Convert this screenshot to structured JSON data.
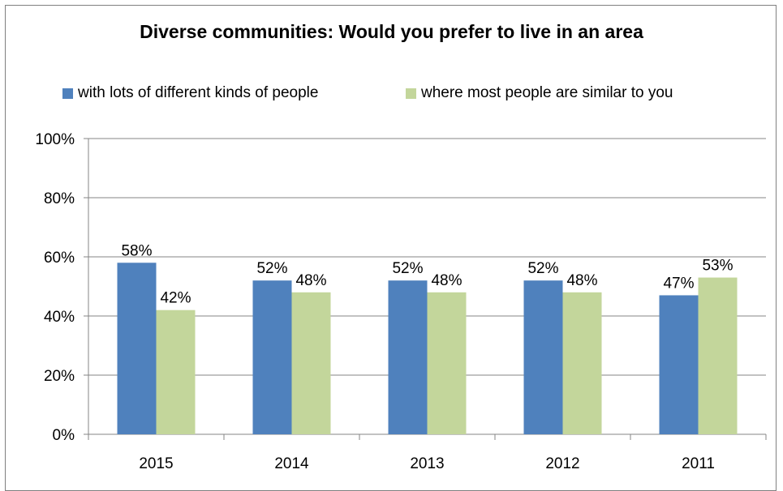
{
  "chart_data": {
    "type": "bar",
    "title": "Diverse communities: Would you prefer to live in an area",
    "categories": [
      "2015",
      "2014",
      "2013",
      "2012",
      "2011"
    ],
    "series": [
      {
        "name": "with lots of different kinds of people",
        "color": "#4F81BD",
        "values": [
          58,
          52,
          52,
          52,
          47
        ],
        "labels": [
          "58%",
          "52%",
          "52%",
          "52%",
          "47%"
        ]
      },
      {
        "name": "where most people are similar to you",
        "color": "#C3D69B",
        "values": [
          42,
          48,
          48,
          48,
          53
        ],
        "labels": [
          "42%",
          "48%",
          "48%",
          "48%",
          "53%"
        ]
      }
    ],
    "ylim": [
      0,
      100
    ],
    "yticks": [
      "0%",
      "20%",
      "40%",
      "60%",
      "80%",
      "100%"
    ],
    "xlabel": "",
    "ylabel": "",
    "grid": true,
    "legend_position": "top"
  }
}
